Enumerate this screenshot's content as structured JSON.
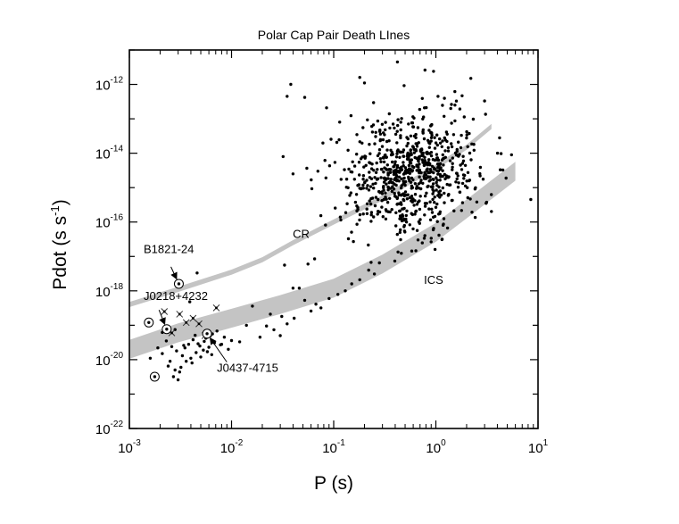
{
  "chart_data": {
    "type": "scatter",
    "title": "Polar Cap Pair Death LInes",
    "xlabel": "P (s)",
    "ylabel_main": "Pdot (s s",
    "ylabel_sup": "-1",
    "ylabel_close": ")",
    "x_scale": "log",
    "y_scale": "log",
    "xlim": [
      0.001,
      10
    ],
    "ylim": [
      1e-22,
      1e-11
    ],
    "grid": false,
    "x_ticks": [
      {
        "base": "10",
        "exp": "-3"
      },
      {
        "base": "10",
        "exp": "-2"
      },
      {
        "base": "10",
        "exp": "-1"
      },
      {
        "base": "10",
        "exp": "0"
      },
      {
        "base": "10",
        "exp": "1"
      }
    ],
    "y_ticks": [
      {
        "base": "10",
        "exp": "-22"
      },
      {
        "base": "10",
        "exp": "-20"
      },
      {
        "base": "10",
        "exp": "-18"
      },
      {
        "base": "10",
        "exp": "-16"
      },
      {
        "base": "10",
        "exp": "-14"
      },
      {
        "base": "10",
        "exp": "-12"
      }
    ],
    "death_lines": [
      {
        "name": "CR",
        "label": "CR",
        "label_at": [
          0.048,
          3.5e-17
        ],
        "points": [
          [
            0.001,
            4e-19
          ],
          [
            0.003,
            1.1e-18
          ],
          [
            0.01,
            3.5e-18
          ],
          [
            0.02,
            8e-18
          ],
          [
            0.04,
            2.5e-17
          ],
          [
            0.1,
            1e-16
          ],
          [
            0.3,
            5e-16
          ],
          [
            1.0,
            4e-15
          ],
          [
            2.0,
            1.5e-14
          ],
          [
            3.5,
            6e-14
          ]
        ],
        "width_dex": 0.15
      },
      {
        "name": "ICS",
        "label": "ICS",
        "label_at": [
          0.95,
          1.6e-18
        ],
        "points": [
          [
            0.001,
            2e-20
          ],
          [
            0.003,
            6e-20
          ],
          [
            0.01,
            1.6e-19
          ],
          [
            0.03,
            4e-19
          ],
          [
            0.1,
            1.2e-18
          ],
          [
            0.3,
            6e-18
          ],
          [
            1.0,
            5e-17
          ],
          [
            2.5,
            4e-16
          ],
          [
            6.0,
            3e-15
          ]
        ],
        "width_dex": 0.55
      }
    ],
    "labeled_pulsars": [
      {
        "name": "B1821-24",
        "P": 0.00305,
        "Pdot": 1.6e-18,
        "label_at": [
          0.00138,
          1.25e-17
        ],
        "arrow_from": [
          0.00255,
          5e-18
        ]
      },
      {
        "name": "J0218+4232",
        "P": 0.00232,
        "Pdot": 7.7e-20,
        "label_at": [
          0.00138,
          5.5e-19
        ],
        "arrow_from": [
          0.00195,
          2.8e-19
        ]
      },
      {
        "name": "J0437-4715",
        "P": 0.00576,
        "Pdot": 5.7e-20,
        "label_at": [
          0.0072,
          4.4e-21
        ],
        "arrow_from": [
          0.009,
          8.5e-21
        ]
      }
    ],
    "circled_pulsars": [
      [
        0.00155,
        1.2e-19
      ],
      [
        0.00177,
        3.2e-21
      ],
      [
        0.00232,
        7.7e-20
      ],
      [
        0.00305,
        1.6e-18
      ],
      [
        0.00576,
        5.7e-20
      ]
    ],
    "starred_pulsars": [
      [
        0.0022,
        2.5e-19
      ],
      [
        0.0026,
        6e-20
      ],
      [
        0.0036,
        1.2e-19
      ],
      [
        0.0048,
        1.1e-19
      ],
      [
        0.0071,
        3.2e-19
      ],
      [
        0.0055,
        5e-20
      ],
      [
        0.0042,
        1.6e-19
      ],
      [
        0.0031,
        2.1e-19
      ]
    ],
    "msp_points": [
      [
        0.0016,
        1.1e-20
      ],
      [
        0.0019,
        2.2e-20
      ],
      [
        0.0021,
        1.5e-20
      ],
      [
        0.0023,
        3.5e-20
      ],
      [
        0.0025,
        9e-21
      ],
      [
        0.0026,
        2.4e-20
      ],
      [
        0.0028,
        5e-21
      ],
      [
        0.0029,
        1.8e-20
      ],
      [
        0.003,
        2.6e-21
      ],
      [
        0.0032,
        6e-21
      ],
      [
        0.0033,
        1.3e-20
      ],
      [
        0.0035,
        2.2e-20
      ],
      [
        0.0036,
        9e-21
      ],
      [
        0.0038,
        2.8e-20
      ],
      [
        0.004,
        1.1e-20
      ],
      [
        0.0042,
        3.8e-20
      ],
      [
        0.0045,
        1.6e-20
      ],
      [
        0.0047,
        2.9e-20
      ],
      [
        0.005,
        1.2e-20
      ],
      [
        0.0053,
        1.9e-20
      ],
      [
        0.0056,
        4.2e-20
      ],
      [
        0.006,
        2.3e-20
      ],
      [
        0.0064,
        1.4e-20
      ],
      [
        0.0068,
        3.1e-20
      ],
      [
        0.0072,
        6.8e-20
      ],
      [
        0.0078,
        2.7e-20
      ],
      [
        0.0085,
        4.5e-20
      ],
      [
        0.0093,
        2e-20
      ],
      [
        0.01,
        3.6e-20
      ],
      [
        0.0027,
        3.2e-21
      ],
      [
        0.0031,
        4.4e-21
      ],
      [
        0.0024,
        6.5e-21
      ],
      [
        0.0041,
        8e-21
      ],
      [
        0.0049,
        2.5e-20
      ],
      [
        0.0058,
        1.7e-20
      ],
      [
        0.0065,
        5.6e-20
      ],
      [
        0.0039,
        4.8e-19
      ],
      [
        0.0046,
        3.3e-18
      ],
      [
        0.0021,
        6.2e-20
      ],
      [
        0.0028,
        7.5e-20
      ],
      [
        0.0034,
        2.6e-20
      ],
      [
        0.0044,
        5.1e-20
      ],
      [
        0.0054,
        3.4e-20
      ],
      [
        0.0062,
        4.9e-20
      ],
      [
        0.012,
        3.3e-20
      ],
      [
        0.016,
        3.6e-19
      ],
      [
        0.019,
        4.5e-20
      ],
      [
        0.022,
        9.5e-20
      ],
      [
        0.026,
        7.4e-20
      ],
      [
        0.031,
        1.8e-19
      ],
      [
        0.035,
        1.1e-19
      ],
      [
        0.041,
        1.6e-19
      ],
      [
        0.046,
        1.2e-18
      ],
      [
        0.052,
        5.3e-19
      ],
      [
        0.06,
        2.6e-19
      ],
      [
        0.067,
        4.1e-19
      ],
      [
        0.075,
        3.2e-19
      ],
      [
        0.09,
        6e-19
      ],
      [
        0.11,
        7.9e-19
      ],
      [
        0.033,
        5.6e-18
      ],
      [
        0.04,
        1.2e-18
      ],
      [
        0.056,
        6e-18
      ],
      [
        0.065,
        8.5e-18
      ],
      [
        0.13,
        1e-18
      ],
      [
        0.15,
        1.6e-18
      ],
      [
        0.18,
        2.1e-18
      ],
      [
        0.22,
        4e-18
      ],
      [
        0.25,
        3.1e-18
      ],
      [
        0.28,
        6.5e-18
      ],
      [
        0.014,
        1e-19
      ],
      [
        0.024,
        2.1e-19
      ],
      [
        0.03,
        5e-20
      ],
      [
        0.008,
        2.8e-20
      ]
    ],
    "scatter_cloud": {
      "n": 780,
      "seed": 20240521,
      "logP_mean": -0.25,
      "logP_sd": 0.33,
      "logPdot_mean": -14.6,
      "logPdot_sd": 0.85,
      "logP_range": [
        -1.45,
        0.75
      ],
      "logPdot_range": [
        -17.4,
        -11.2
      ],
      "extra_points": [
        [
          0.035,
          4.5e-13
        ],
        [
          0.052,
          4.2e-13
        ],
        [
          0.038,
          1e-12
        ],
        [
          0.42,
          4.5e-12
        ],
        [
          1.05,
          4.5e-13
        ],
        [
          1.4,
          2e-13
        ],
        [
          3.0,
          3.3e-13
        ],
        [
          2.2,
          1.5e-12
        ],
        [
          0.04,
          2.5e-15
        ],
        [
          0.032,
          8e-15
        ],
        [
          0.07,
          3e-15
        ],
        [
          0.18,
          1.6e-12
        ],
        [
          0.95,
          2.4e-12
        ],
        [
          8.5,
          4.5e-16
        ],
        [
          5.5,
          9e-15
        ],
        [
          4.2,
          2.8e-14
        ],
        [
          0.2,
          1.1e-12
        ]
      ]
    }
  }
}
